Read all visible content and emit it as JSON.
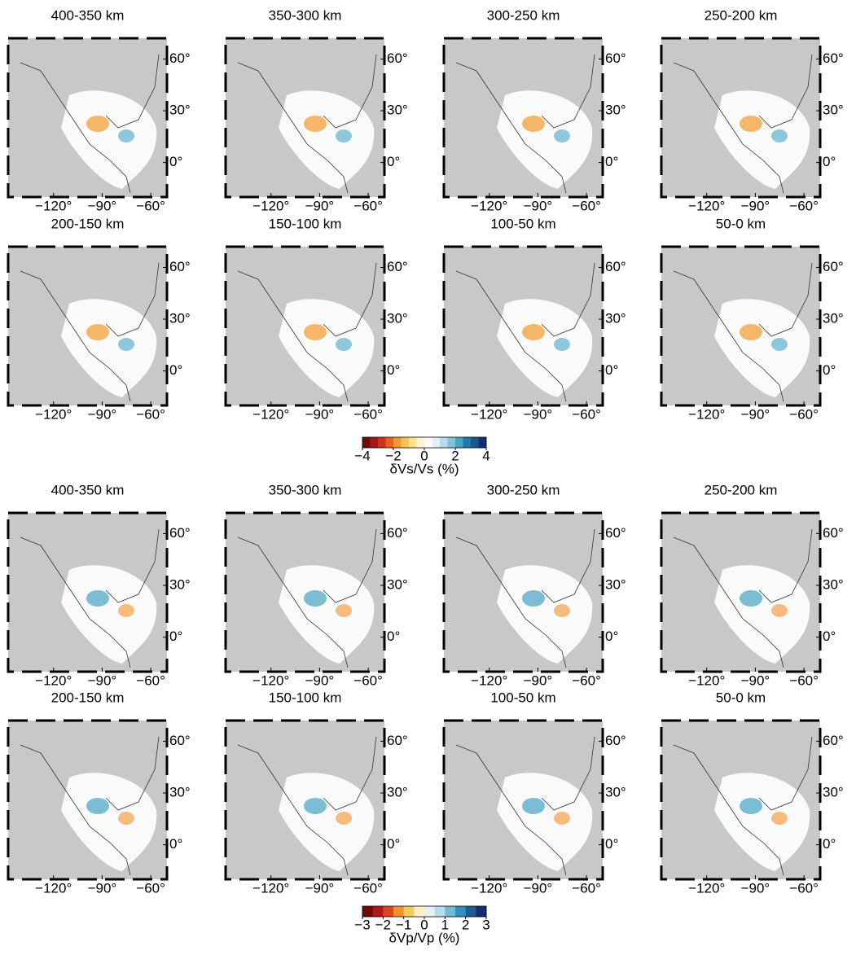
{
  "map_axes": {
    "xlim": [
      -148,
      -50
    ],
    "ylim": [
      -20,
      72
    ],
    "xticks": [
      {
        "value": -120,
        "label": "−120°"
      },
      {
        "value": -90,
        "label": "−90°"
      },
      {
        "value": -60,
        "label": "−60°"
      }
    ],
    "yticks": [
      {
        "value": 60,
        "label": "60°"
      },
      {
        "value": 30,
        "label": "30°"
      },
      {
        "value": 0,
        "label": "0°"
      }
    ]
  },
  "sections": [
    {
      "panels": [
        {
          "title": "400-350 km"
        },
        {
          "title": "350-300 km"
        },
        {
          "title": "300-250 km"
        },
        {
          "title": "250-200 km"
        },
        {
          "title": "200-150 km"
        },
        {
          "title": "150-100 km"
        },
        {
          "title": "100-50 km"
        },
        {
          "title": "50-0 km"
        }
      ],
      "colorbar": {
        "label": "δVs/Vs (%)",
        "clim": [
          -4,
          4
        ],
        "ticks": [
          {
            "value": -4,
            "label": "−4"
          },
          {
            "value": -2,
            "label": "−2"
          },
          0,
          2,
          4
        ],
        "colors": [
          "#6e0a0a",
          "#a8141c",
          "#d2301e",
          "#e8621c",
          "#f39a2c",
          "#f8c453",
          "#fce38a",
          "#fff4cf",
          "#ffffff",
          "#dff0f6",
          "#b3ddea",
          "#7ec4da",
          "#46a3c5",
          "#2079ac",
          "#1d5590",
          "#1a2d6a"
        ]
      }
    },
    {
      "panels": [
        {
          "title": "400-350 km"
        },
        {
          "title": "350-300 km"
        },
        {
          "title": "300-250 km"
        },
        {
          "title": "250-200 km"
        },
        {
          "title": "200-150 km"
        },
        {
          "title": "150-100 km"
        },
        {
          "title": "100-50 km"
        },
        {
          "title": "50-0 km"
        }
      ],
      "colorbar": {
        "label": "δVp/Vp (%)",
        "clim": [
          -3,
          3
        ],
        "ticks": [
          {
            "value": -3,
            "label": "−3"
          },
          {
            "value": -2,
            "label": "−2"
          },
          {
            "value": -1,
            "label": "−1"
          },
          0,
          1,
          2,
          3
        ],
        "colors": [
          "#6e0a0a",
          "#b3181d",
          "#e0451c",
          "#f3922a",
          "#f9c95a",
          "#fff1c6",
          "#e3f2f7",
          "#b3ddea",
          "#6fbcd6",
          "#2f8fbd",
          "#1d5c96",
          "#1a2d6a"
        ]
      }
    }
  ]
}
